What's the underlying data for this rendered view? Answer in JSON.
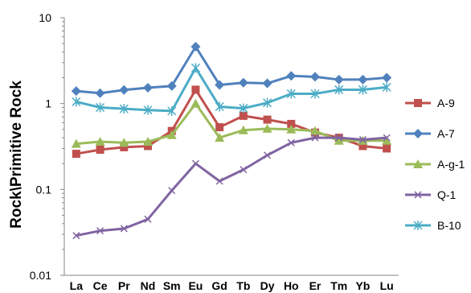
{
  "chart_data": {
    "type": "line",
    "title": "",
    "xlabel": "",
    "ylabel": "Rock\\Primitive Rock",
    "y_scale": "log",
    "ylim": [
      0.01,
      10
    ],
    "y_ticks": [
      {
        "value": 10,
        "label": "10"
      },
      {
        "value": 1,
        "label": "1"
      },
      {
        "value": 0.1,
        "label": "0.1"
      },
      {
        "value": 0.01,
        "label": "0.01"
      }
    ],
    "grid": false,
    "legend_position": "right",
    "categories": [
      "La",
      "Ce",
      "Pr",
      "Nd",
      "Sm",
      "Eu",
      "Gd",
      "Tb",
      "Dy",
      "Ho",
      "Er",
      "Tm",
      "Yb",
      "Lu"
    ],
    "series": [
      {
        "name": "A-9",
        "color": "#C0504D",
        "marker": "square",
        "values": [
          0.26,
          0.29,
          0.31,
          0.32,
          0.48,
          1.45,
          0.53,
          0.72,
          0.65,
          0.58,
          0.46,
          0.4,
          0.32,
          0.3
        ]
      },
      {
        "name": "A-7",
        "color": "#4F81BD",
        "marker": "diamond",
        "values": [
          1.4,
          1.32,
          1.44,
          1.53,
          1.6,
          4.6,
          1.65,
          1.75,
          1.72,
          2.1,
          2.05,
          1.9,
          1.9,
          2.0
        ]
      },
      {
        "name": "A-g-1",
        "color": "#9BBB59",
        "marker": "triangle",
        "values": [
          0.34,
          0.36,
          0.35,
          0.36,
          0.43,
          1.0,
          0.4,
          0.49,
          0.51,
          0.5,
          0.48,
          0.37,
          0.37,
          0.37
        ]
      },
      {
        "name": "Q-1",
        "color": "#8064A2",
        "marker": "x",
        "values": [
          0.029,
          0.033,
          0.035,
          0.045,
          0.097,
          0.2,
          0.125,
          0.17,
          0.25,
          0.35,
          0.4,
          0.4,
          0.38,
          0.4
        ]
      },
      {
        "name": "B-10",
        "color": "#4BACC6",
        "marker": "star",
        "values": [
          1.05,
          0.9,
          0.87,
          0.84,
          0.82,
          2.6,
          0.92,
          0.88,
          1.02,
          1.3,
          1.3,
          1.45,
          1.45,
          1.55
        ]
      }
    ]
  }
}
